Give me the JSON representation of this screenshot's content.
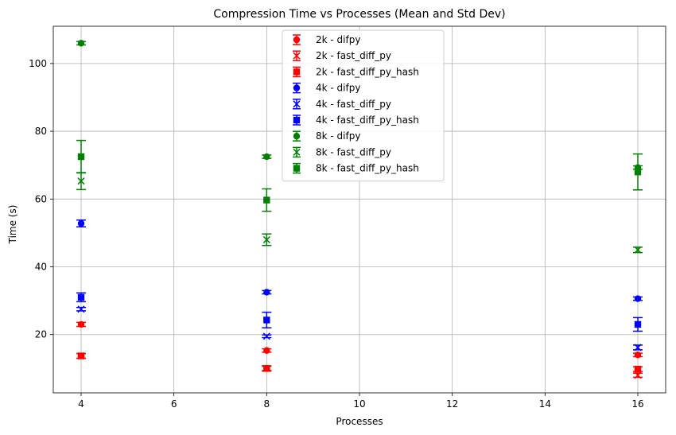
{
  "chart_data": {
    "type": "scatter",
    "title": "Compression Time vs Processes (Mean and Std Dev)",
    "xlabel": "Processes",
    "ylabel": "Time (s)",
    "xlim": [
      3.4,
      16.6
    ],
    "ylim": [
      2.8,
      111
    ],
    "xticks": [
      4,
      6,
      8,
      10,
      12,
      14,
      16
    ],
    "yticks": [
      20,
      40,
      60,
      80,
      100
    ],
    "grid": true,
    "legend_position": "top-center",
    "series": [
      {
        "name": "2k - difpy",
        "color": "#ff0000",
        "marker": "circle",
        "x": [
          4,
          8,
          16
        ],
        "y": [
          23.0,
          15.3,
          14.0
        ],
        "err": [
          0.6,
          0.5,
          0.5
        ]
      },
      {
        "name": "2k - fast_diff_py",
        "color": "#ff0000",
        "marker": "x",
        "x": [
          4,
          8,
          16
        ],
        "y": [
          13.7,
          10.0,
          8.0
        ],
        "err": [
          0.7,
          0.6,
          0.6
        ]
      },
      {
        "name": "2k - fast_diff_py_hash",
        "color": "#ff0000",
        "marker": "square",
        "x": [
          4,
          8,
          16
        ],
        "y": [
          13.7,
          10.0,
          9.8
        ],
        "err": [
          0.7,
          0.8,
          0.7
        ]
      },
      {
        "name": "4k - difpy",
        "color": "#0000ff",
        "marker": "circle",
        "x": [
          4,
          8,
          16
        ],
        "y": [
          52.8,
          32.5,
          30.6
        ],
        "err": [
          1.0,
          0.5,
          0.5
        ]
      },
      {
        "name": "4k - fast_diff_py",
        "color": "#0000ff",
        "marker": "x",
        "x": [
          4,
          8,
          16
        ],
        "y": [
          27.5,
          19.5,
          16.2
        ],
        "err": [
          0.5,
          0.4,
          0.7
        ]
      },
      {
        "name": "4k - fast_diff_py_hash",
        "color": "#0000ff",
        "marker": "square",
        "x": [
          4,
          8,
          16
        ],
        "y": [
          31.0,
          24.3,
          23.0
        ],
        "err": [
          1.3,
          2.3,
          2.0
        ]
      },
      {
        "name": "8k - difpy",
        "color": "#008000",
        "marker": "circle",
        "x": [
          4,
          8,
          16
        ],
        "y": [
          106.0,
          72.5,
          69.3
        ],
        "err": [
          0.5,
          0.5,
          0.5
        ]
      },
      {
        "name": "8k - fast_diff_py",
        "color": "#008000",
        "marker": "x",
        "x": [
          4,
          8,
          16
        ],
        "y": [
          65.3,
          48.0,
          45.0
        ],
        "err": [
          2.5,
          1.7,
          0.8
        ]
      },
      {
        "name": "8k - fast_diff_py_hash",
        "color": "#008000",
        "marker": "square",
        "x": [
          4,
          8,
          16
        ],
        "y": [
          72.5,
          59.7,
          68.0
        ],
        "err": [
          4.8,
          3.3,
          5.3
        ]
      }
    ]
  }
}
